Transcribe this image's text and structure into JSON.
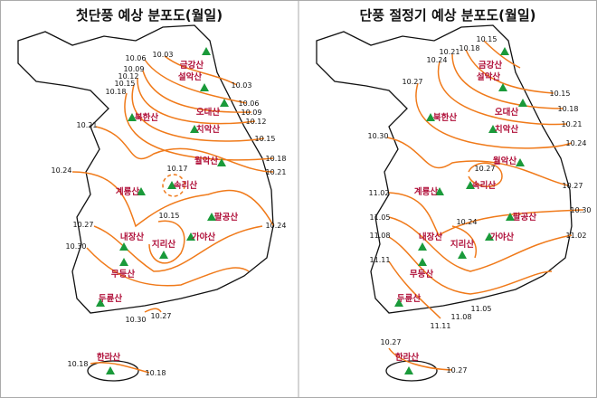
{
  "maps": [
    {
      "title": "첫단풍 예상 분포도(월일)",
      "mountains": [
        "금강산",
        "설악산",
        "오대산",
        "북한산",
        "치악산",
        "월악산",
        "속리산",
        "계룡산",
        "팔공산",
        "내장산",
        "지리산",
        "가야산",
        "무등산",
        "두륜산",
        "한라산"
      ],
      "isolines": [
        "10.03",
        "10.06",
        "10.09",
        "10.12",
        "10.15",
        "10.18",
        "10.03",
        "10.06",
        "10.09",
        "10.12",
        "10.15",
        "10.18",
        "10.21",
        "10.24",
        "10.21",
        "10.24",
        "10.27",
        "10.30",
        "10.17",
        "10.15",
        "10.30",
        "10.27",
        "10.18",
        "10.18"
      ]
    },
    {
      "title": "단풍 절정기 예상 분포도(월일)",
      "mountains": [
        "금강산",
        "설악산",
        "오대산",
        "북한산",
        "치악산",
        "월악산",
        "속리산",
        "계룡산",
        "팔공산",
        "내장산",
        "지리산",
        "가야산",
        "무등산",
        "두륜산",
        "한라산"
      ],
      "isolines": [
        "10.15",
        "10.18",
        "10.21",
        "10.24",
        "10.27",
        "10.15",
        "10.18",
        "10.21",
        "10.24",
        "10.27",
        "10.30",
        "11.02",
        "10.30",
        "11.02",
        "11.05",
        "11.08",
        "11.11",
        "10.27",
        "10.24",
        "11.11",
        "11.08",
        "11.05",
        "10.27",
        "10.27"
      ]
    }
  ]
}
